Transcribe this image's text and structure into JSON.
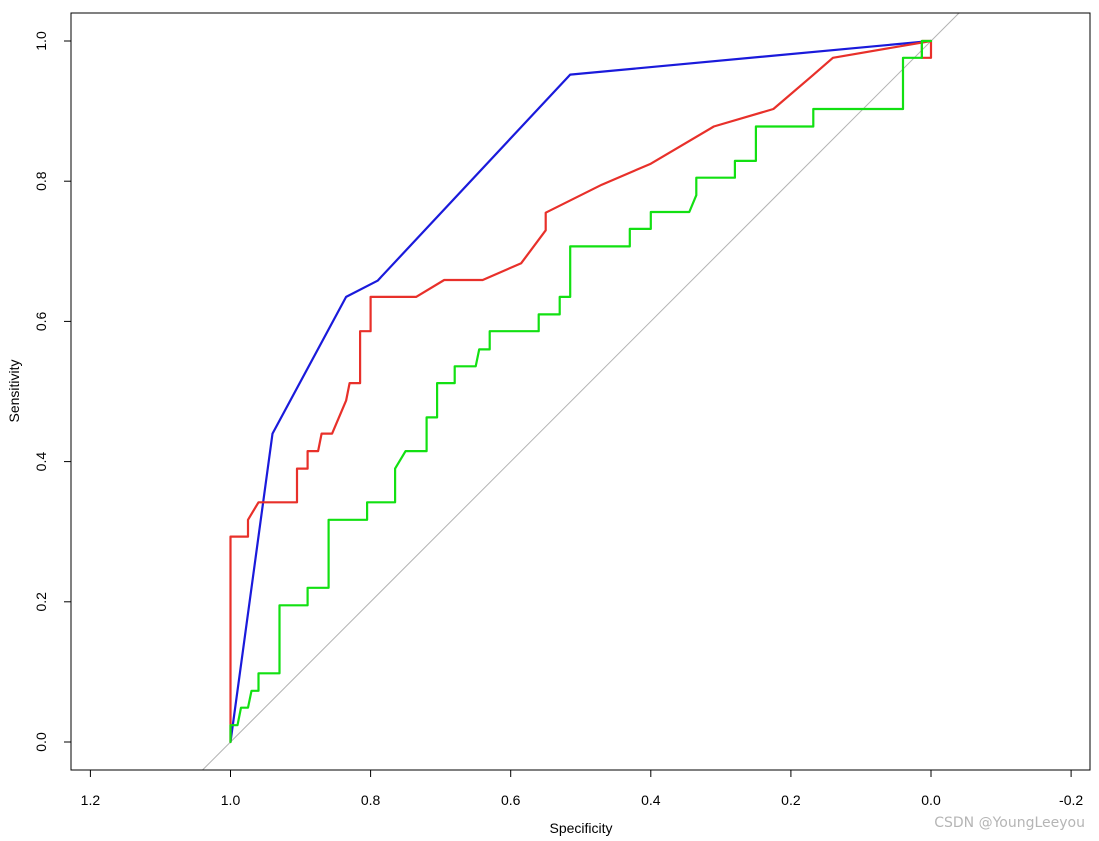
{
  "chart_data": {
    "type": "line",
    "xlabel": "Specificity",
    "ylabel": "Sensitivity",
    "x_reversed": true,
    "xlim": [
      1.2,
      -0.2
    ],
    "ylim": [
      0.0,
      1.0
    ],
    "x_ticks": [
      "1.2",
      "1.0",
      "0.8",
      "0.6",
      "0.4",
      "0.2",
      "0.0",
      "-0.2"
    ],
    "x_tick_values": [
      1.2,
      1.0,
      0.8,
      0.6,
      0.4,
      0.2,
      0.0,
      -0.2
    ],
    "y_ticks": [
      "0.0",
      "0.2",
      "0.4",
      "0.6",
      "0.8",
      "1.0"
    ],
    "y_tick_values": [
      0.0,
      0.2,
      0.4,
      0.6,
      0.8,
      1.0
    ],
    "grid": false,
    "legend": "none",
    "reference_line": {
      "color": "#b3b3b3",
      "points": [
        [
          1.04,
          -0.04
        ],
        [
          -0.04,
          1.04
        ]
      ]
    },
    "series": [
      {
        "color": "#1a1adb",
        "points": [
          [
            1.0,
            0.0
          ],
          [
            0.94,
            0.44
          ],
          [
            0.835,
            0.635
          ],
          [
            0.79,
            0.658
          ],
          [
            0.515,
            0.952
          ],
          [
            0.0,
            1.0
          ]
        ]
      },
      {
        "color": "#e8302a",
        "points": [
          [
            0.0,
            1.0
          ],
          [
            0.0,
            0.976
          ],
          [
            0.013,
            0.976
          ],
          [
            0.013,
            1.0
          ],
          [
            0.0,
            1.0
          ],
          [
            0.14,
            0.976
          ],
          [
            0.17,
            0.95
          ],
          [
            0.225,
            0.903
          ],
          [
            0.31,
            0.878
          ],
          [
            0.4,
            0.825
          ],
          [
            0.47,
            0.795
          ],
          [
            0.55,
            0.755
          ],
          [
            0.55,
            0.73
          ],
          [
            0.585,
            0.683
          ],
          [
            0.64,
            0.659
          ],
          [
            0.695,
            0.659
          ],
          [
            0.735,
            0.635
          ],
          [
            0.8,
            0.635
          ],
          [
            0.8,
            0.586
          ],
          [
            0.815,
            0.586
          ],
          [
            0.815,
            0.512
          ],
          [
            0.83,
            0.512
          ],
          [
            0.835,
            0.487
          ],
          [
            0.855,
            0.44
          ],
          [
            0.87,
            0.44
          ],
          [
            0.875,
            0.415
          ],
          [
            0.89,
            0.415
          ],
          [
            0.89,
            0.39
          ],
          [
            0.905,
            0.39
          ],
          [
            0.905,
            0.342
          ],
          [
            0.96,
            0.342
          ],
          [
            0.975,
            0.317
          ],
          [
            0.975,
            0.293
          ],
          [
            1.0,
            0.293
          ],
          [
            1.0,
            0.0
          ]
        ]
      },
      {
        "color": "#12e012",
        "points": [
          [
            1.0,
            0.0
          ],
          [
            1.0,
            0.024
          ],
          [
            0.99,
            0.024
          ],
          [
            0.985,
            0.049
          ],
          [
            0.975,
            0.049
          ],
          [
            0.97,
            0.073
          ],
          [
            0.96,
            0.073
          ],
          [
            0.96,
            0.098
          ],
          [
            0.93,
            0.098
          ],
          [
            0.93,
            0.195
          ],
          [
            0.89,
            0.195
          ],
          [
            0.89,
            0.22
          ],
          [
            0.86,
            0.22
          ],
          [
            0.86,
            0.317
          ],
          [
            0.805,
            0.317
          ],
          [
            0.805,
            0.342
          ],
          [
            0.765,
            0.342
          ],
          [
            0.765,
            0.39
          ],
          [
            0.75,
            0.415
          ],
          [
            0.72,
            0.415
          ],
          [
            0.72,
            0.463
          ],
          [
            0.705,
            0.463
          ],
          [
            0.705,
            0.512
          ],
          [
            0.68,
            0.512
          ],
          [
            0.68,
            0.536
          ],
          [
            0.65,
            0.536
          ],
          [
            0.645,
            0.56
          ],
          [
            0.63,
            0.56
          ],
          [
            0.63,
            0.586
          ],
          [
            0.56,
            0.586
          ],
          [
            0.56,
            0.61
          ],
          [
            0.53,
            0.61
          ],
          [
            0.53,
            0.635
          ],
          [
            0.515,
            0.635
          ],
          [
            0.515,
            0.707
          ],
          [
            0.43,
            0.707
          ],
          [
            0.43,
            0.732
          ],
          [
            0.4,
            0.732
          ],
          [
            0.4,
            0.756
          ],
          [
            0.345,
            0.756
          ],
          [
            0.335,
            0.78
          ],
          [
            0.335,
            0.805
          ],
          [
            0.28,
            0.805
          ],
          [
            0.28,
            0.829
          ],
          [
            0.25,
            0.829
          ],
          [
            0.25,
            0.878
          ],
          [
            0.168,
            0.878
          ],
          [
            0.168,
            0.903
          ],
          [
            0.04,
            0.903
          ],
          [
            0.04,
            0.976
          ],
          [
            0.013,
            0.976
          ],
          [
            0.013,
            1.0
          ],
          [
            0.0,
            1.0
          ]
        ]
      }
    ]
  },
  "watermark": {
    "text": "CSDN @YoungLeeyou"
  }
}
